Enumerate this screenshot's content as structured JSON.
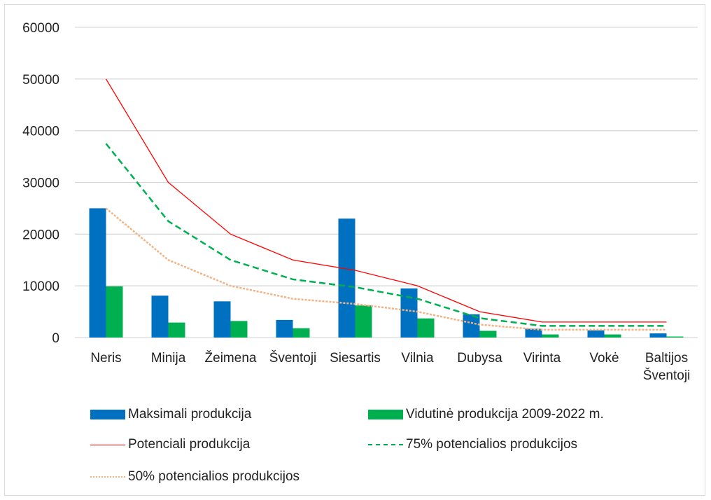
{
  "chart_data": {
    "type": "bar",
    "categories": [
      "Neris",
      "Minija",
      "Žeimena",
      "Šventoji",
      "Siesartis",
      "Vilnia",
      "Dubysa",
      "Virinta",
      "Vokė",
      "Baltijos Šventoji"
    ],
    "y_ticks": [
      "0",
      "10000",
      "20000",
      "30000",
      "40000",
      "50000",
      "60000"
    ],
    "ylim": [
      0,
      60000
    ],
    "grid": true,
    "legend_position": "bottom",
    "bar_series": [
      {
        "name": "Maksimali produkcija",
        "color": "#0070c0",
        "values": [
          25000,
          8100,
          7000,
          3400,
          23000,
          9500,
          4500,
          1700,
          1400,
          800
        ]
      },
      {
        "name": "Vidutinė produkcija 2009-2022 m.",
        "color": "#00b050",
        "values": [
          9900,
          2900,
          3200,
          1800,
          6200,
          3700,
          1300,
          600,
          600,
          200
        ]
      }
    ],
    "line_series": [
      {
        "name": "Potenciali produkcija",
        "color": "#ff0000",
        "style": "solid",
        "values": [
          50000,
          30000,
          20000,
          15000,
          13000,
          10000,
          5000,
          3000,
          3000,
          3000
        ]
      },
      {
        "name": "75% potencialios produkcijos",
        "color": "#00b050",
        "style": "dashed",
        "values": [
          37500,
          22500,
          15000,
          11250,
          9750,
          7500,
          3750,
          2250,
          2250,
          2250
        ]
      },
      {
        "name": "50% potencialios produkcijos",
        "color": "#f4b183",
        "style": "dotted",
        "values": [
          25000,
          15000,
          10000,
          7500,
          6500,
          5000,
          2500,
          1500,
          1500,
          1500
        ]
      }
    ]
  }
}
